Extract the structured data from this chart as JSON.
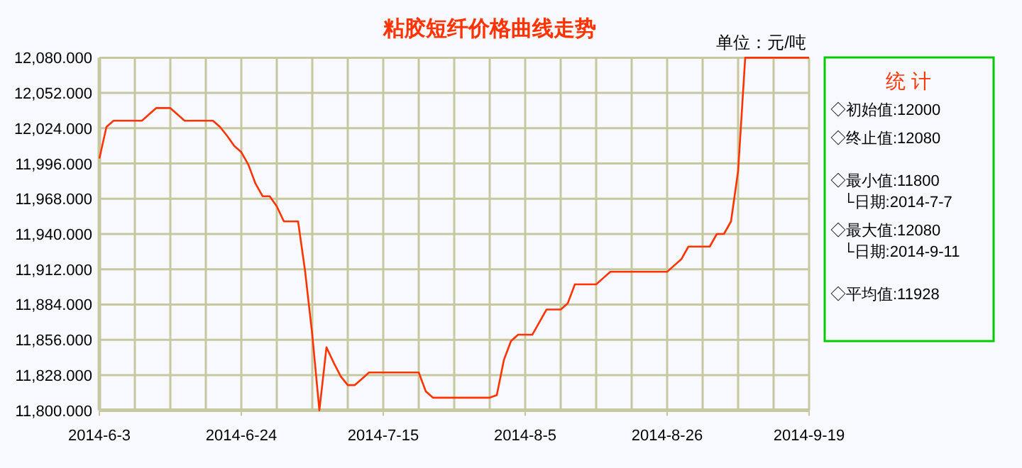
{
  "chart_data": {
    "type": "line",
    "title": "粘胶短纤价格曲线走势",
    "categories": [
      "2014-6-3",
      null,
      null,
      null,
      null,
      null,
      null,
      null,
      null,
      null,
      null,
      null,
      null,
      null,
      null,
      null,
      null,
      null,
      null,
      null,
      "2014-6-24",
      null,
      null,
      null,
      null,
      null,
      null,
      null,
      null,
      null,
      null,
      null,
      null,
      null,
      null,
      null,
      null,
      null,
      null,
      null,
      "2014-7-15",
      null,
      null,
      null,
      null,
      null,
      null,
      null,
      null,
      null,
      null,
      null,
      null,
      null,
      null,
      null,
      null,
      null,
      null,
      null,
      "2014-8-5",
      null,
      null,
      null,
      null,
      null,
      null,
      null,
      null,
      null,
      null,
      null,
      null,
      null,
      null,
      null,
      null,
      null,
      null,
      null,
      "2014-8-26",
      null,
      null,
      null,
      null,
      null,
      null,
      null,
      null,
      null,
      null,
      null,
      null,
      null,
      null,
      null,
      null,
      null,
      null,
      null,
      "2014-9-19"
    ],
    "series": [
      {
        "color": "#ff3300",
        "values": [
          12000,
          12025,
          12030,
          12030,
          12030,
          12030,
          12030,
          12035,
          12040,
          12040,
          12040,
          12035,
          12030,
          12030,
          12030,
          12030,
          12030,
          12025,
          12018,
          12010,
          12005,
          11995,
          11980,
          11970,
          11970,
          11962,
          11950,
          11950,
          11950,
          11910,
          11860,
          11800,
          11850,
          11838,
          11827,
          11820,
          11820,
          11825,
          11830,
          11830,
          11830,
          11830,
          11830,
          11830,
          11830,
          11830,
          11815,
          11810,
          11810,
          11810,
          11810,
          11810,
          11810,
          11810,
          11810,
          11810,
          11812,
          11840,
          11855,
          11860,
          11860,
          11860,
          11870,
          11880,
          11880,
          11880,
          11885,
          11900,
          11900,
          11900,
          11900,
          11905,
          11910,
          11910,
          11910,
          11910,
          11910,
          11910,
          11910,
          11910,
          11910,
          11915,
          11920,
          11930,
          11930,
          11930,
          11930,
          11940,
          11940,
          11950,
          11990,
          12080,
          12080,
          12080,
          12080,
          12080,
          12080,
          12080,
          12080,
          12080,
          12080
        ]
      }
    ],
    "ylim": [
      11800,
      12080
    ],
    "yticks": [
      {
        "value": 11800,
        "label": "11,800.000"
      },
      {
        "value": 11828,
        "label": "11,828.000"
      },
      {
        "value": 11856,
        "label": "11,856.000"
      },
      {
        "value": 11884,
        "label": "11,884.000"
      },
      {
        "value": 11912,
        "label": "11,912.000"
      },
      {
        "value": 11940,
        "label": "11,940.000"
      },
      {
        "value": 11968,
        "label": "11,968.000"
      },
      {
        "value": 11996,
        "label": "11,996.000"
      },
      {
        "value": 12024,
        "label": "12,024.000"
      },
      {
        "value": 12052,
        "label": "12,052.000"
      },
      {
        "value": 12080,
        "label": "12,080.000"
      }
    ],
    "grid": true,
    "marker": "none",
    "line_style": "solid",
    "annotations": [
      "单位：元/吨",
      "统 计",
      "◇初始值:12000",
      "◇终止值:12080",
      "◇最小值:11800",
      "└日期:2014-7-7",
      "◇最大值:12080",
      "└日期:2014-9-11",
      "◇平均值:11928"
    ]
  }
}
